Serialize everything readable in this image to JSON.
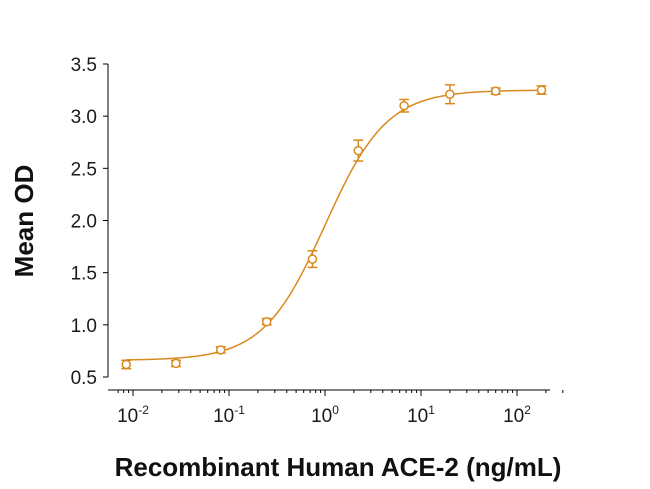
{
  "chart_data": {
    "type": "scatter",
    "title": "",
    "xlabel": "Recombinant Human ACE-2 (ng/mL)",
    "ylabel": "Mean OD",
    "x_scale": "log10",
    "xlim": [
      0.007,
      300
    ],
    "ylim": [
      0.5,
      3.5
    ],
    "x_ticks": [
      {
        "value": 0.01,
        "base": "10",
        "exp": "-2"
      },
      {
        "value": 0.1,
        "base": "10",
        "exp": "-1"
      },
      {
        "value": 1,
        "base": "10",
        "exp": "0"
      },
      {
        "value": 10,
        "base": "10",
        "exp": "1"
      },
      {
        "value": 100,
        "base": "10",
        "exp": "2"
      }
    ],
    "y_ticks": [
      "0.5",
      "1.0",
      "1.5",
      "2.0",
      "2.5",
      "3.0",
      "3.5"
    ],
    "grid": false,
    "color": "#D98A1E",
    "series": [
      {
        "points": [
          {
            "x": 0.0085,
            "y": 0.62,
            "err": 0.04
          },
          {
            "x": 0.028,
            "y": 0.63,
            "err": 0.03
          },
          {
            "x": 0.082,
            "y": 0.76,
            "err": 0.03
          },
          {
            "x": 0.247,
            "y": 1.03,
            "err": 0.03
          },
          {
            "x": 0.74,
            "y": 1.63,
            "err": 0.08
          },
          {
            "x": 2.22,
            "y": 2.67,
            "err": 0.1
          },
          {
            "x": 6.67,
            "y": 3.1,
            "err": 0.06
          },
          {
            "x": 20,
            "y": 3.21,
            "err": 0.09
          },
          {
            "x": 60,
            "y": 3.24,
            "err": 0.03
          },
          {
            "x": 180,
            "y": 3.25,
            "err": 0.04
          }
        ],
        "fit": {
          "model": "4PL",
          "bottom": 0.66,
          "top": 3.25,
          "ec50": 1.0,
          "hill": 1.35
        }
      }
    ]
  }
}
